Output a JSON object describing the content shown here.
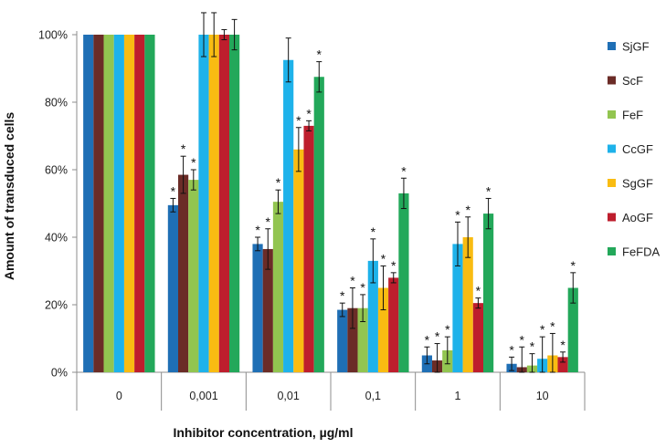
{
  "chart_data": {
    "type": "bar",
    "xlabel": "Inhibitor concentration, µg/ml",
    "ylabel": "Amount of transduced cells",
    "categories": [
      "0",
      "0,001",
      "0,01",
      "0,1",
      "1",
      "10"
    ],
    "ylim": [
      0,
      100
    ],
    "yticks": [
      0,
      20,
      40,
      60,
      80,
      100
    ],
    "ytick_labels": [
      "0%",
      "20%",
      "40%",
      "60%",
      "80%",
      "100%"
    ],
    "grid": false,
    "legend": "right",
    "significance_marker": "*",
    "series": [
      {
        "name": "SjGF",
        "color": "#1f6fb5",
        "values": [
          100,
          49.5,
          38,
          18.5,
          5,
          2.5
        ],
        "errors": [
          0,
          2,
          2,
          2,
          2.5,
          2
        ],
        "sig": [
          false,
          true,
          true,
          true,
          true,
          true
        ]
      },
      {
        "name": "ScF",
        "color": "#6b2c27",
        "values": [
          100,
          58.5,
          36.5,
          19,
          3.5,
          1.5
        ],
        "errors": [
          0,
          5.5,
          6,
          6,
          5,
          6
        ],
        "sig": [
          false,
          true,
          true,
          true,
          true,
          true
        ]
      },
      {
        "name": "FeF",
        "color": "#92c550",
        "values": [
          100,
          57,
          50.5,
          19,
          6.5,
          2
        ],
        "errors": [
          0,
          3,
          3.5,
          4,
          4,
          3.5
        ],
        "sig": [
          false,
          true,
          true,
          true,
          true,
          true
        ]
      },
      {
        "name": "CcGF",
        "color": "#1eb2ea",
        "values": [
          100,
          100,
          92.5,
          33,
          38,
          4
        ],
        "errors": [
          0,
          6.5,
          6.5,
          6.5,
          6.5,
          6.5
        ],
        "sig": [
          false,
          false,
          false,
          true,
          true,
          true
        ]
      },
      {
        "name": "SgGF",
        "color": "#f9bc12",
        "values": [
          100,
          100,
          66,
          25,
          40,
          5
        ],
        "errors": [
          0,
          6.5,
          6.5,
          6.5,
          6,
          6.5
        ],
        "sig": [
          false,
          false,
          true,
          true,
          true,
          true
        ]
      },
      {
        "name": "AoGF",
        "color": "#be1e2d",
        "values": [
          100,
          100,
          73,
          28,
          20.5,
          4.5
        ],
        "errors": [
          0,
          1.5,
          1.5,
          1.5,
          1.5,
          1.5
        ],
        "sig": [
          false,
          false,
          true,
          true,
          true,
          true
        ]
      },
      {
        "name": "FeFDA",
        "color": "#23a85a",
        "values": [
          100,
          100,
          87.5,
          53,
          47,
          25
        ],
        "errors": [
          0,
          4.5,
          4.5,
          4.5,
          4.5,
          4.5
        ],
        "sig": [
          false,
          false,
          true,
          true,
          true,
          true
        ]
      }
    ]
  }
}
